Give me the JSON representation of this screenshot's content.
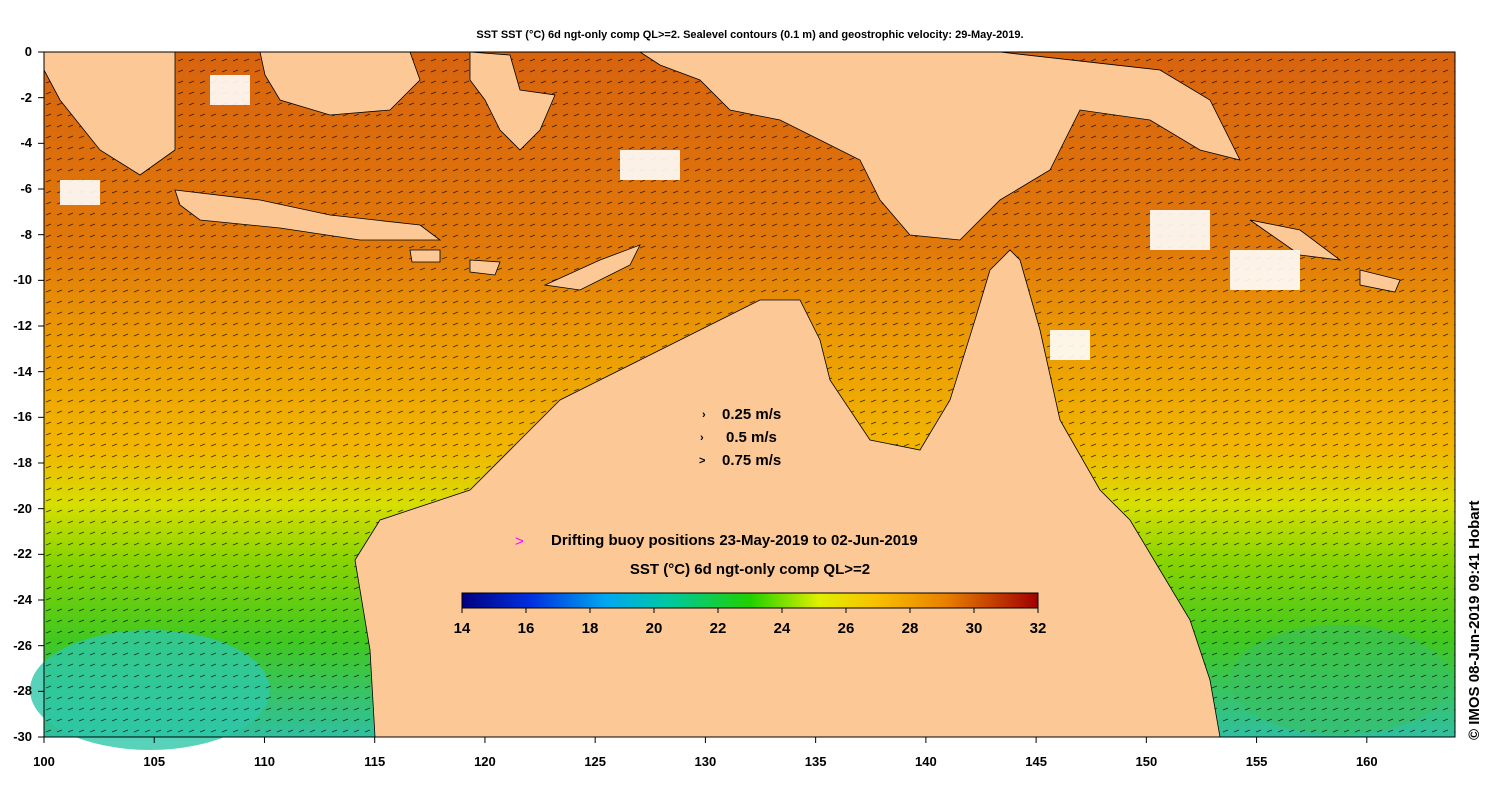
{
  "title": "SST SST (°C) 6d ngt-only comp QL>=2. Sealevel contours (0.1 m) and geostrophic velocity: 29-May-2019.",
  "axes": {
    "x_ticks": [
      "100",
      "105",
      "110",
      "115",
      "120",
      "125",
      "130",
      "135",
      "140",
      "145",
      "150",
      "155",
      "160"
    ],
    "y_ticks": [
      "0",
      "-2",
      "-4",
      "-6",
      "-8",
      "-10",
      "-12",
      "-14",
      "-16",
      "-18",
      "-20",
      "-22",
      "-24",
      "-26",
      "-28",
      "-30"
    ],
    "lon_range": [
      100,
      164
    ],
    "lat_range": [
      -30,
      0
    ]
  },
  "velocity_legend": [
    {
      "symbol": "›",
      "label": "0.25 m/s"
    },
    {
      "symbol": "›",
      "label": "0.5 m/s"
    },
    {
      "symbol": ">",
      "label": "0.75 m/s"
    }
  ],
  "buoy_legend": {
    "symbol": ">",
    "label": "Drifting buoy positions 23-May-2019 to 02-Jun-2019",
    "color": "#ff00ff"
  },
  "colorbar": {
    "title": "SST (°C) 6d ngt-only comp QL>=2",
    "ticks": [
      "14",
      "16",
      "18",
      "20",
      "22",
      "24",
      "26",
      "28",
      "30",
      "32"
    ],
    "range": [
      14,
      32
    ]
  },
  "copyright": "© IMOS 08-Jun-2019 09:41 Hobart",
  "colors": {
    "land": "#fcc896",
    "warm": "#d9680c",
    "mid": "#f0a000",
    "cool": "#6ed400",
    "cold": "#2ec0b0"
  }
}
